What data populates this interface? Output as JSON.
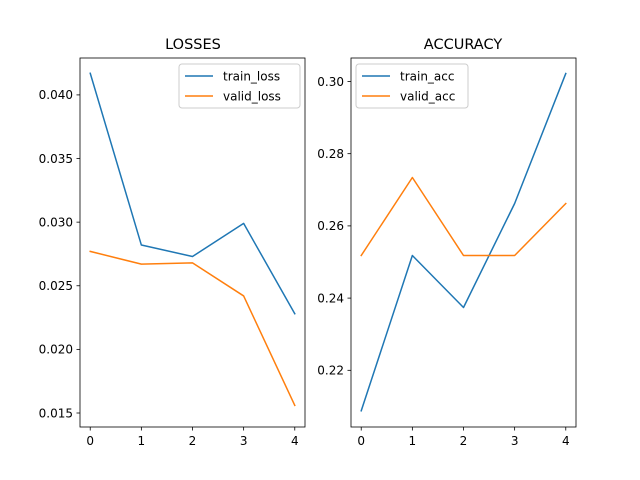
{
  "colors": {
    "train": "#1f77b4",
    "valid": "#ff7f0e",
    "axes": "#000000",
    "legend_border": "#cccccc"
  },
  "chart_data": [
    {
      "type": "line",
      "title": "LOSSES",
      "x": [
        0,
        1,
        2,
        3,
        4
      ],
      "xticks": [
        "0",
        "1",
        "2",
        "3",
        "4"
      ],
      "xlim": [
        -0.2,
        4.2
      ],
      "yticks": [
        "0.015",
        "0.020",
        "0.025",
        "0.030",
        "0.035",
        "0.040"
      ],
      "ylim": [
        0.0139,
        0.0429
      ],
      "legend_position": "top-right",
      "grid": false,
      "series": [
        {
          "name": "train_loss",
          "color_key": "train",
          "values": [
            0.0417,
            0.0282,
            0.0273,
            0.0299,
            0.0228
          ]
        },
        {
          "name": "valid_loss",
          "color_key": "valid",
          "values": [
            0.0277,
            0.0267,
            0.0268,
            0.0242,
            0.0156
          ]
        }
      ]
    },
    {
      "type": "line",
      "title": "ACCURACY",
      "x": [
        0,
        1,
        2,
        3,
        4
      ],
      "xticks": [
        "0",
        "1",
        "2",
        "3",
        "4"
      ],
      "xlim": [
        -0.2,
        4.2
      ],
      "yticks": [
        "0.22",
        "0.24",
        "0.26",
        "0.28",
        "0.30"
      ],
      "ylim": [
        0.2043,
        0.3065
      ],
      "legend_position": "top-left",
      "grid": false,
      "series": [
        {
          "name": "train_acc",
          "color_key": "train",
          "values": [
            0.2088,
            0.2518,
            0.2374,
            0.2662,
            0.3022
          ]
        },
        {
          "name": "valid_acc",
          "color_key": "valid",
          "values": [
            0.2518,
            0.2734,
            0.2518,
            0.2518,
            0.2662
          ]
        }
      ]
    }
  ]
}
